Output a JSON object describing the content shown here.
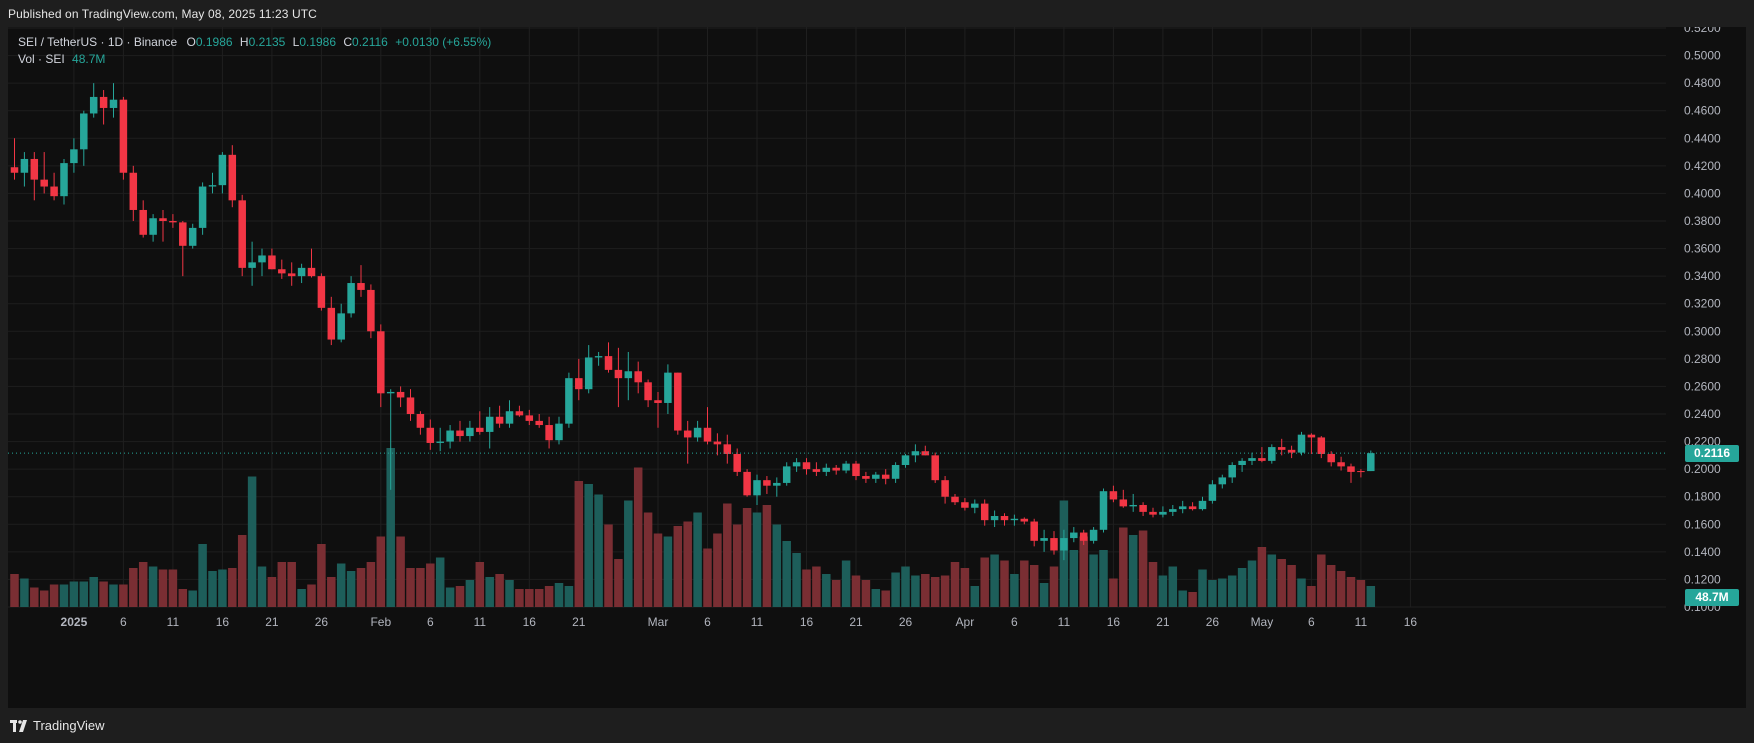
{
  "header": {
    "published": "Published on TradingView.com, May 08, 2025 11:23 UTC"
  },
  "footer": {
    "brand": "TradingView"
  },
  "legend": {
    "symbol": "SEI / TetherUS · 1D · Binance",
    "o_label": "O",
    "o_value": "0.1986",
    "h_label": "H",
    "h_value": "0.2135",
    "l_label": "L",
    "l_value": "0.1986",
    "c_label": "C",
    "c_value": "0.2116",
    "change": "+0.0130 (+6.55%)",
    "vol_label": "Vol · SEI",
    "vol_value": "48.7M"
  },
  "price_tag": "0.2116",
  "volume_tag": "48.7M",
  "colors": {
    "up": "#26a69a",
    "down": "#f23645",
    "vol_up": "#1d5e5a",
    "vol_down": "#7a2e33",
    "grid": "#1f1f1f",
    "bg": "#0f0f0f"
  },
  "chart_data": {
    "type": "candlestick",
    "symbol": "SEI / TetherUS",
    "ylim": [
      0.1,
      0.52
    ],
    "y_ticks": [
      "0.1000",
      "0.1200",
      "0.1400",
      "0.1600",
      "0.1800",
      "0.2000",
      "0.2200",
      "0.2400",
      "0.2600",
      "0.2800",
      "0.3000",
      "0.3200",
      "0.3400",
      "0.3600",
      "0.3800",
      "0.4000",
      "0.4200",
      "0.4400",
      "0.4600",
      "0.4800",
      "0.5000",
      "0.5200"
    ],
    "x_ticks": [
      {
        "label": "2025",
        "day": 6,
        "bold": true
      },
      {
        "label": "6",
        "day": 11
      },
      {
        "label": "11",
        "day": 16
      },
      {
        "label": "16",
        "day": 21
      },
      {
        "label": "21",
        "day": 26
      },
      {
        "label": "26",
        "day": 31
      },
      {
        "label": "Feb",
        "day": 37
      },
      {
        "label": "6",
        "day": 42
      },
      {
        "label": "11",
        "day": 47
      },
      {
        "label": "16",
        "day": 52
      },
      {
        "label": "21",
        "day": 57
      },
      {
        "label": "Mar",
        "day": 65
      },
      {
        "label": "6",
        "day": 70
      },
      {
        "label": "11",
        "day": 75
      },
      {
        "label": "16",
        "day": 80
      },
      {
        "label": "21",
        "day": 85
      },
      {
        "label": "26",
        "day": 90
      },
      {
        "label": "Apr",
        "day": 96
      },
      {
        "label": "6",
        "day": 101
      },
      {
        "label": "11",
        "day": 106
      },
      {
        "label": "16",
        "day": 111
      },
      {
        "label": "21",
        "day": 116
      },
      {
        "label": "26",
        "day": 121
      },
      {
        "label": "May",
        "day": 126
      },
      {
        "label": "6",
        "day": 131
      },
      {
        "label": "11",
        "day": 136
      },
      {
        "label": "16",
        "day": 141
      }
    ],
    "candles": [
      [
        0.419,
        0.44,
        0.41,
        0.415
      ],
      [
        0.415,
        0.43,
        0.405,
        0.425
      ],
      [
        0.425,
        0.43,
        0.395,
        0.41
      ],
      [
        0.41,
        0.43,
        0.4,
        0.405
      ],
      [
        0.405,
        0.415,
        0.395,
        0.398
      ],
      [
        0.398,
        0.425,
        0.392,
        0.422
      ],
      [
        0.422,
        0.44,
        0.415,
        0.432
      ],
      [
        0.432,
        0.46,
        0.42,
        0.458
      ],
      [
        0.458,
        0.48,
        0.455,
        0.47
      ],
      [
        0.47,
        0.475,
        0.45,
        0.462
      ],
      [
        0.462,
        0.48,
        0.455,
        0.468
      ],
      [
        0.468,
        0.47,
        0.41,
        0.415
      ],
      [
        0.415,
        0.42,
        0.38,
        0.388
      ],
      [
        0.388,
        0.395,
        0.368,
        0.37
      ],
      [
        0.37,
        0.385,
        0.365,
        0.382
      ],
      [
        0.382,
        0.388,
        0.365,
        0.38
      ],
      [
        0.38,
        0.385,
        0.375,
        0.379
      ],
      [
        0.379,
        0.38,
        0.34,
        0.362
      ],
      [
        0.362,
        0.378,
        0.36,
        0.375
      ],
      [
        0.375,
        0.408,
        0.37,
        0.405
      ],
      [
        0.405,
        0.415,
        0.4,
        0.406
      ],
      [
        0.406,
        0.43,
        0.4,
        0.428
      ],
      [
        0.428,
        0.435,
        0.39,
        0.395
      ],
      [
        0.395,
        0.399,
        0.34,
        0.346
      ],
      [
        0.346,
        0.365,
        0.333,
        0.35
      ],
      [
        0.35,
        0.36,
        0.34,
        0.355
      ],
      [
        0.355,
        0.36,
        0.345,
        0.345
      ],
      [
        0.345,
        0.352,
        0.338,
        0.342
      ],
      [
        0.342,
        0.35,
        0.333,
        0.34
      ],
      [
        0.34,
        0.349,
        0.335,
        0.346
      ],
      [
        0.346,
        0.36,
        0.339,
        0.34
      ],
      [
        0.34,
        0.342,
        0.315,
        0.317
      ],
      [
        0.317,
        0.325,
        0.29,
        0.294
      ],
      [
        0.294,
        0.32,
        0.292,
        0.313
      ],
      [
        0.313,
        0.34,
        0.31,
        0.335
      ],
      [
        0.335,
        0.348,
        0.325,
        0.33
      ],
      [
        0.33,
        0.334,
        0.295,
        0.3
      ],
      [
        0.3,
        0.305,
        0.245,
        0.255
      ],
      [
        0.255,
        0.258,
        0.185,
        0.256
      ],
      [
        0.256,
        0.26,
        0.245,
        0.252
      ],
      [
        0.252,
        0.258,
        0.235,
        0.24
      ],
      [
        0.24,
        0.242,
        0.225,
        0.23
      ],
      [
        0.23,
        0.236,
        0.214,
        0.219
      ],
      [
        0.219,
        0.23,
        0.213,
        0.22
      ],
      [
        0.22,
        0.232,
        0.215,
        0.228
      ],
      [
        0.228,
        0.235,
        0.22,
        0.224
      ],
      [
        0.224,
        0.235,
        0.22,
        0.23
      ],
      [
        0.23,
        0.242,
        0.225,
        0.227
      ],
      [
        0.227,
        0.245,
        0.215,
        0.238
      ],
      [
        0.238,
        0.246,
        0.23,
        0.233
      ],
      [
        0.233,
        0.25,
        0.23,
        0.242
      ],
      [
        0.242,
        0.246,
        0.238,
        0.239
      ],
      [
        0.239,
        0.243,
        0.232,
        0.235
      ],
      [
        0.235,
        0.24,
        0.23,
        0.232
      ],
      [
        0.232,
        0.238,
        0.215,
        0.221
      ],
      [
        0.221,
        0.238,
        0.218,
        0.233
      ],
      [
        0.233,
        0.27,
        0.23,
        0.266
      ],
      [
        0.266,
        0.28,
        0.25,
        0.258
      ],
      [
        0.258,
        0.29,
        0.255,
        0.281
      ],
      [
        0.281,
        0.285,
        0.275,
        0.282
      ],
      [
        0.282,
        0.292,
        0.27,
        0.272
      ],
      [
        0.272,
        0.288,
        0.245,
        0.266
      ],
      [
        0.266,
        0.285,
        0.25,
        0.271
      ],
      [
        0.271,
        0.278,
        0.255,
        0.263
      ],
      [
        0.263,
        0.265,
        0.245,
        0.25
      ],
      [
        0.25,
        0.256,
        0.23,
        0.248
      ],
      [
        0.248,
        0.276,
        0.24,
        0.27
      ],
      [
        0.27,
        0.27,
        0.225,
        0.228
      ],
      [
        0.228,
        0.235,
        0.204,
        0.223
      ],
      [
        0.223,
        0.235,
        0.22,
        0.23
      ],
      [
        0.23,
        0.245,
        0.218,
        0.22
      ],
      [
        0.22,
        0.226,
        0.21,
        0.218
      ],
      [
        0.218,
        0.225,
        0.204,
        0.211
      ],
      [
        0.211,
        0.215,
        0.195,
        0.198
      ],
      [
        0.198,
        0.2,
        0.18,
        0.181
      ],
      [
        0.181,
        0.196,
        0.174,
        0.192
      ],
      [
        0.192,
        0.195,
        0.182,
        0.188
      ],
      [
        0.188,
        0.194,
        0.18,
        0.19
      ],
      [
        0.19,
        0.205,
        0.188,
        0.202
      ],
      [
        0.202,
        0.208,
        0.198,
        0.205
      ],
      [
        0.205,
        0.208,
        0.196,
        0.2
      ],
      [
        0.2,
        0.205,
        0.195,
        0.198
      ],
      [
        0.198,
        0.204,
        0.195,
        0.201
      ],
      [
        0.201,
        0.203,
        0.196,
        0.199
      ],
      [
        0.199,
        0.206,
        0.197,
        0.204
      ],
      [
        0.204,
        0.206,
        0.192,
        0.195
      ],
      [
        0.195,
        0.198,
        0.19,
        0.193
      ],
      [
        0.193,
        0.198,
        0.19,
        0.196
      ],
      [
        0.196,
        0.2,
        0.189,
        0.193
      ],
      [
        0.193,
        0.205,
        0.19,
        0.203
      ],
      [
        0.203,
        0.211,
        0.201,
        0.21
      ],
      [
        0.21,
        0.218,
        0.205,
        0.213
      ],
      [
        0.213,
        0.217,
        0.21,
        0.21
      ],
      [
        0.21,
        0.212,
        0.19,
        0.192
      ],
      [
        0.192,
        0.195,
        0.175,
        0.18
      ],
      [
        0.18,
        0.182,
        0.174,
        0.176
      ],
      [
        0.176,
        0.179,
        0.17,
        0.172
      ],
      [
        0.172,
        0.178,
        0.168,
        0.175
      ],
      [
        0.175,
        0.178,
        0.159,
        0.163
      ],
      [
        0.163,
        0.17,
        0.158,
        0.166
      ],
      [
        0.166,
        0.168,
        0.159,
        0.163
      ],
      [
        0.163,
        0.167,
        0.159,
        0.164
      ],
      [
        0.164,
        0.165,
        0.16,
        0.162
      ],
      [
        0.162,
        0.164,
        0.144,
        0.148
      ],
      [
        0.148,
        0.156,
        0.14,
        0.15
      ],
      [
        0.15,
        0.155,
        0.138,
        0.141
      ],
      [
        0.141,
        0.156,
        0.134,
        0.15
      ],
      [
        0.15,
        0.158,
        0.147,
        0.154
      ],
      [
        0.154,
        0.156,
        0.145,
        0.148
      ],
      [
        0.148,
        0.158,
        0.146,
        0.156
      ],
      [
        0.156,
        0.186,
        0.154,
        0.184
      ],
      [
        0.184,
        0.188,
        0.176,
        0.178
      ],
      [
        0.178,
        0.185,
        0.172,
        0.173
      ],
      [
        0.173,
        0.182,
        0.169,
        0.174
      ],
      [
        0.174,
        0.176,
        0.166,
        0.169
      ],
      [
        0.169,
        0.172,
        0.165,
        0.167
      ],
      [
        0.167,
        0.173,
        0.165,
        0.169
      ],
      [
        0.169,
        0.174,
        0.166,
        0.171
      ],
      [
        0.171,
        0.177,
        0.168,
        0.173
      ],
      [
        0.173,
        0.176,
        0.17,
        0.171
      ],
      [
        0.171,
        0.18,
        0.17,
        0.177
      ],
      [
        0.177,
        0.192,
        0.175,
        0.189
      ],
      [
        0.189,
        0.196,
        0.186,
        0.194
      ],
      [
        0.194,
        0.205,
        0.19,
        0.203
      ],
      [
        0.203,
        0.208,
        0.198,
        0.206
      ],
      [
        0.206,
        0.212,
        0.203,
        0.208
      ],
      [
        0.208,
        0.216,
        0.205,
        0.206
      ],
      [
        0.206,
        0.218,
        0.204,
        0.216
      ],
      [
        0.216,
        0.222,
        0.21,
        0.214
      ],
      [
        0.214,
        0.217,
        0.208,
        0.212
      ],
      [
        0.212,
        0.227,
        0.21,
        0.225
      ],
      [
        0.225,
        0.226,
        0.211,
        0.223
      ],
      [
        0.223,
        0.224,
        0.208,
        0.211
      ],
      [
        0.211,
        0.213,
        0.202,
        0.205
      ],
      [
        0.205,
        0.209,
        0.199,
        0.202
      ],
      [
        0.202,
        0.204,
        0.19,
        0.198
      ],
      [
        0.1986,
        0.2,
        0.194,
        0.198
      ],
      [
        0.1986,
        0.2135,
        0.1986,
        0.2116
      ]
    ],
    "volumes_relative": [
      0.22,
      0.19,
      0.13,
      0.11,
      0.15,
      0.15,
      0.17,
      0.17,
      0.2,
      0.17,
      0.15,
      0.15,
      0.26,
      0.3,
      0.27,
      0.25,
      0.25,
      0.12,
      0.11,
      0.42,
      0.24,
      0.25,
      0.26,
      0.48,
      0.87,
      0.27,
      0.2,
      0.3,
      0.3,
      0.12,
      0.15,
      0.42,
      0.2,
      0.29,
      0.24,
      0.26,
      0.3,
      0.47,
      1.06,
      0.47,
      0.26,
      0.26,
      0.29,
      0.33,
      0.13,
      0.14,
      0.18,
      0.3,
      0.2,
      0.22,
      0.18,
      0.12,
      0.12,
      0.12,
      0.14,
      0.16,
      0.14,
      0.84,
      0.82,
      0.75,
      0.55,
      0.32,
      0.71,
      0.93,
      0.63,
      0.49,
      0.47,
      0.54,
      0.57,
      0.63,
      0.39,
      0.49,
      0.69,
      0.55,
      0.66,
      0.63,
      0.68,
      0.55,
      0.44,
      0.36,
      0.25,
      0.27,
      0.22,
      0.18,
      0.31,
      0.21,
      0.18,
      0.12,
      0.11,
      0.23,
      0.27,
      0.21,
      0.22,
      0.2,
      0.21,
      0.3,
      0.26,
      0.14,
      0.33,
      0.35,
      0.31,
      0.22,
      0.31,
      0.28,
      0.16,
      0.27,
      0.71,
      0.38,
      0.47,
      0.35,
      0.38,
      0.19,
      0.53,
      0.48,
      0.51,
      0.3,
      0.21,
      0.27,
      0.11,
      0.1,
      0.25,
      0.18,
      0.19,
      0.21,
      0.26,
      0.31,
      0.4,
      0.35,
      0.32,
      0.28,
      0.19,
      0.14,
      0.35,
      0.28,
      0.24,
      0.2,
      0.18,
      0.14,
      0.14,
      0.18,
      0.16,
      0.14,
      0.09
    ]
  }
}
